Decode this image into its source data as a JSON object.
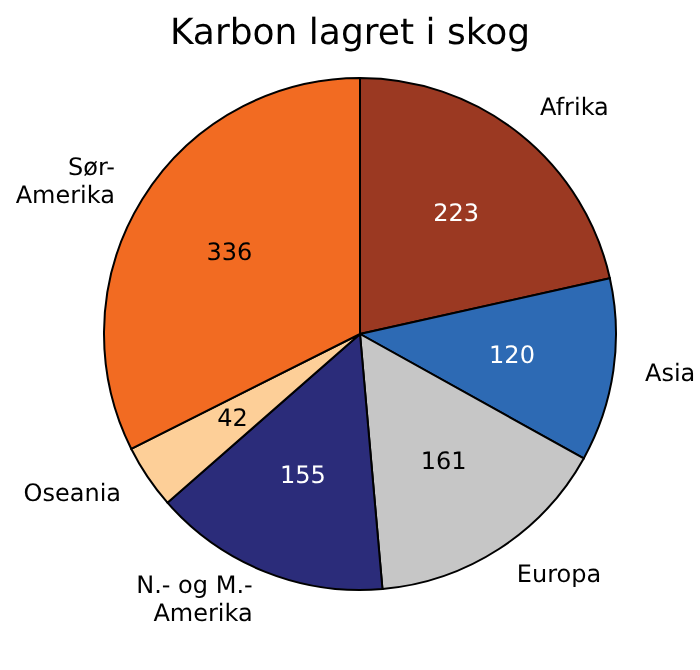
{
  "chart_data": {
    "type": "pie",
    "title": "Karbon lagret i skog",
    "categories": [
      "Afrika",
      "Asia",
      "Europa",
      "N.- og M.-Amerika",
      "Oseania",
      "Sør-Amerika"
    ],
    "values": [
      223,
      120,
      161,
      155,
      42,
      336
    ],
    "colors": [
      "#9b3922",
      "#2d6ab4",
      "#c6c6c6",
      "#2b2c7a",
      "#fdcf98",
      "#f26b22"
    ],
    "data_labels": true
  }
}
